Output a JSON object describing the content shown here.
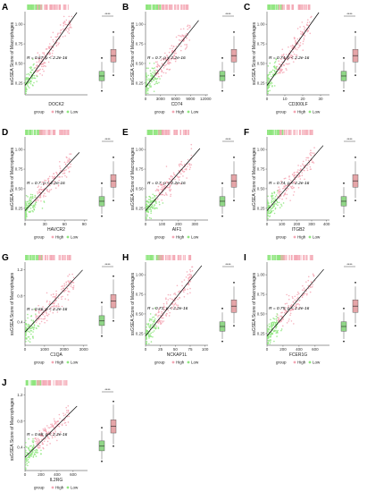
{
  "colors": {
    "high": "#f4a6b4",
    "low": "#8ee67e",
    "high_box": "#e5a5a8",
    "low_box": "#90d687",
    "line": "#000000"
  },
  "legend": {
    "title": "group",
    "high": "High",
    "low": "Low"
  },
  "significance": "****",
  "chart_data": [
    {
      "type": "scatter",
      "label": "A",
      "xlabel": "DOCK2",
      "ylabel": "ssGSEA Score of Macrophages",
      "annotation": "R = 0.67, p < 2.2e-16",
      "xlim": [
        0,
        400
      ],
      "ylim": [
        0.1,
        1.15
      ],
      "xticks": [],
      "yticks": [
        0.25,
        0.5,
        0.75,
        1.0
      ],
      "ytick_labels": [
        "0.25",
        "0.50",
        "0.75",
        "1.00"
      ],
      "xmax_data": 300,
      "slope": 0.0028,
      "intercept": 0.22,
      "box_high": [
        0.38,
        0.52,
        0.6,
        0.68,
        0.85
      ],
      "box_low": [
        0.18,
        0.28,
        0.34,
        0.4,
        0.52
      ]
    },
    {
      "type": "scatter",
      "label": "B",
      "xlabel": "CD74",
      "ylabel": "ssGSEA Score of Macrophages",
      "annotation": "R = 0.7, p < 2.2e-16",
      "xlim": [
        0,
        12500
      ],
      "ylim": [
        0.1,
        1.15
      ],
      "xticks": [
        0,
        3000,
        6000,
        9000,
        12000
      ],
      "yticks": [
        0.25,
        0.5,
        0.75,
        1.0
      ],
      "ytick_labels": [
        "0.25",
        "0.50",
        "0.75",
        "1.00"
      ],
      "xmax_data": 9000,
      "slope": 8e-05,
      "intercept": 0.2,
      "box_high": [
        0.38,
        0.52,
        0.6,
        0.68,
        0.85
      ],
      "box_low": [
        0.18,
        0.28,
        0.34,
        0.4,
        0.52
      ]
    },
    {
      "type": "scatter",
      "label": "C",
      "xlabel": "CD300LF",
      "ylabel": "ssGSEA Score of Macrophages",
      "annotation": "R = 0.74, p < 2.2e-16",
      "xlim": [
        0,
        35
      ],
      "ylim": [
        0.1,
        1.15
      ],
      "xticks": [
        0,
        10,
        20,
        30
      ],
      "yticks": [
        0.25,
        0.5,
        0.75,
        1.0
      ],
      "ytick_labels": [
        "0.25",
        "0.50",
        "0.75",
        "1.00"
      ],
      "xmax_data": 25,
      "slope": 0.032,
      "intercept": 0.22,
      "box_high": [
        0.38,
        0.52,
        0.6,
        0.68,
        0.85
      ],
      "box_low": [
        0.18,
        0.28,
        0.34,
        0.4,
        0.52
      ]
    },
    {
      "type": "scatter",
      "label": "D",
      "xlabel": "HAVCR2",
      "ylabel": "ssGSEA Score of Macrophages",
      "annotation": "R = 0.7, p < 2.2e-16",
      "xlim": [
        0,
        95
      ],
      "ylim": [
        0.1,
        1.15
      ],
      "xticks": [
        0,
        30,
        60,
        90
      ],
      "yticks": [
        0.25,
        0.5,
        0.75,
        1.0
      ],
      "ytick_labels": [
        "0.25",
        "0.50",
        "0.75",
        "1.00"
      ],
      "xmax_data": 70,
      "slope": 0.009,
      "intercept": 0.22,
      "box_high": [
        0.38,
        0.52,
        0.6,
        0.68,
        0.85
      ],
      "box_low": [
        0.18,
        0.28,
        0.34,
        0.4,
        0.52
      ]
    },
    {
      "type": "scatter",
      "label": "E",
      "xlabel": "AIF1",
      "ylabel": "ssGSEA Score of Macrophages",
      "annotation": "R = 0.7, p < 2.2e-16",
      "xlim": [
        0,
        380
      ],
      "ylim": [
        0.1,
        1.15
      ],
      "xticks": [
        0,
        100,
        200,
        300
      ],
      "yticks": [
        0.25,
        0.5,
        0.75,
        1.0
      ],
      "ytick_labels": [
        "0.25",
        "0.50",
        "0.75",
        "1.00"
      ],
      "xmax_data": 280,
      "slope": 0.0024,
      "intercept": 0.22,
      "box_high": [
        0.38,
        0.52,
        0.6,
        0.68,
        0.85
      ],
      "box_low": [
        0.18,
        0.28,
        0.34,
        0.4,
        0.52
      ]
    },
    {
      "type": "scatter",
      "label": "F",
      "xlabel": "ITGB2",
      "ylabel": "ssGSEA Score of Macrophages",
      "annotation": "R = 0.74, p < 2.2e-16",
      "xlim": [
        0,
        420
      ],
      "ylim": [
        0.1,
        1.15
      ],
      "xticks": [
        0,
        100,
        200,
        300,
        400
      ],
      "yticks": [
        0.25,
        0.5,
        0.75,
        1.0
      ],
      "ytick_labels": [
        "0.25",
        "0.50",
        "0.75",
        "1.00"
      ],
      "xmax_data": 320,
      "slope": 0.0022,
      "intercept": 0.22,
      "box_high": [
        0.38,
        0.52,
        0.6,
        0.68,
        0.85
      ],
      "box_low": [
        0.18,
        0.28,
        0.34,
        0.4,
        0.52
      ]
    },
    {
      "type": "scatter",
      "label": "G",
      "xlabel": "C1QA",
      "ylabel": "ssGSEA Score of Macrophages",
      "annotation": "R = 0.66, p < 2.2e-16",
      "xlim": [
        0,
        3200
      ],
      "ylim": [
        0.05,
        1.3
      ],
      "xticks": [
        0,
        1000,
        2000,
        3000
      ],
      "yticks": [
        0.4,
        0.8,
        1.2
      ],
      "ytick_labels": [
        "0.4",
        "0.8",
        "1.2"
      ],
      "xmax_data": 2500,
      "slope": 0.00032,
      "intercept": 0.25,
      "box_high": [
        0.45,
        0.62,
        0.72,
        0.82,
        1.05
      ],
      "box_low": [
        0.22,
        0.35,
        0.42,
        0.5,
        0.65
      ]
    },
    {
      "type": "scatter",
      "label": "H",
      "xlabel": "NCKAP1L",
      "ylabel": "ssGSEA Score of Macrophages",
      "annotation": "R = 0.71, p < 2.2e-16",
      "xlim": [
        0,
        105
      ],
      "ylim": [
        0.1,
        1.15
      ],
      "xticks": [
        0,
        25,
        50,
        75,
        100
      ],
      "yticks": [
        0.25,
        0.5,
        0.75,
        1.0
      ],
      "ytick_labels": [
        "0.25",
        "0.50",
        "0.75",
        "1.00"
      ],
      "xmax_data": 80,
      "slope": 0.0095,
      "intercept": 0.22,
      "box_high": [
        0.38,
        0.52,
        0.6,
        0.68,
        0.85
      ],
      "box_low": [
        0.18,
        0.28,
        0.34,
        0.4,
        0.52
      ]
    },
    {
      "type": "scatter",
      "label": "I",
      "xlabel": "FCER1G",
      "ylabel": "ssGSEA Score of Macrophages",
      "annotation": "R = 0.75, p < 2.2e-16",
      "xlim": [
        0,
        780
      ],
      "ylim": [
        0.1,
        1.15
      ],
      "xticks": [
        0,
        200,
        400,
        600
      ],
      "yticks": [
        0.25,
        0.5,
        0.75,
        1.0
      ],
      "ytick_labels": [
        "0.25",
        "0.50",
        "0.75",
        "1.00"
      ],
      "xmax_data": 600,
      "slope": 0.0012,
      "intercept": 0.22,
      "box_high": [
        0.38,
        0.52,
        0.6,
        0.68,
        0.85
      ],
      "box_low": [
        0.18,
        0.28,
        0.34,
        0.4,
        0.52
      ]
    },
    {
      "type": "scatter",
      "label": "J",
      "xlabel": "IL2RG",
      "ylabel": "ssGSEA Score of Macrophages",
      "annotation": "R = 0.68, p < 2.2e-16",
      "xlim": [
        0,
        780
      ],
      "ylim": [
        0.05,
        1.3
      ],
      "xticks": [
        0,
        200,
        400,
        600
      ],
      "yticks": [
        0.4,
        0.8,
        1.2
      ],
      "ytick_labels": [
        "0.4",
        "0.8",
        "1.2"
      ],
      "xmax_data": 550,
      "slope": 0.0012,
      "intercept": 0.25,
      "box_high": [
        0.45,
        0.62,
        0.72,
        0.82,
        1.05
      ],
      "box_low": [
        0.22,
        0.35,
        0.42,
        0.5,
        0.65
      ]
    }
  ]
}
